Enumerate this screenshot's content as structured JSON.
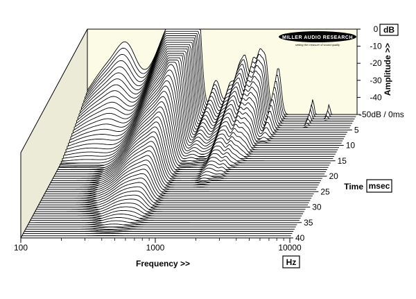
{
  "chart_data": {
    "type": "waterfall",
    "logo": {
      "brand": "MILLER AUDIO RESEARCH",
      "tagline": "setting the measure of sound quality"
    },
    "x_axis": {
      "label": "Frequency >>",
      "unit": "Hz",
      "scale": "log",
      "range": [
        100,
        10000
      ],
      "tick_labels": [
        "100",
        "1000",
        "10000"
      ]
    },
    "z_axis": {
      "label": "Amplitude >>",
      "unit": "dB",
      "range": [
        -50,
        0
      ],
      "tick_labels": [
        "0",
        "-10",
        "-20",
        "-30",
        "-40",
        "-50dB / 0ms"
      ]
    },
    "time_axis": {
      "label": "Time",
      "unit": "msec",
      "range": [
        0,
        40
      ],
      "tick_labels": [
        "5",
        "10",
        "15",
        "20",
        "25",
        "30",
        "35",
        "40"
      ]
    },
    "peaks": [
      {
        "f": 155,
        "a": 0.6,
        "w": 0.22,
        "d": 0.45
      },
      {
        "f": 200,
        "a": 0.35,
        "w": 0.1,
        "d": 0.35
      },
      {
        "f": 330,
        "a": 0.45,
        "w": 0.12,
        "d": 0.85
      },
      {
        "f": 420,
        "a": 0.7,
        "w": 0.1,
        "d": 1.0
      },
      {
        "f": 520,
        "a": 0.8,
        "w": 0.08,
        "d": 0.95
      },
      {
        "f": 600,
        "a": 0.95,
        "w": 0.06,
        "d": 0.9
      },
      {
        "f": 660,
        "a": 0.75,
        "w": 0.04,
        "d": 0.5
      },
      {
        "f": 900,
        "a": 0.4,
        "w": 0.05,
        "d": 0.45
      },
      {
        "f": 1150,
        "a": 0.35,
        "w": 0.04,
        "d": 0.4
      },
      {
        "f": 1350,
        "a": 0.55,
        "w": 0.04,
        "d": 0.6
      },
      {
        "f": 1500,
        "a": 0.5,
        "w": 0.03,
        "d": 0.55
      },
      {
        "f": 1700,
        "a": 0.6,
        "w": 0.03,
        "d": 0.55
      },
      {
        "f": 1900,
        "a": 0.65,
        "w": 0.03,
        "d": 0.45
      },
      {
        "f": 2100,
        "a": 0.6,
        "w": 0.03,
        "d": 0.4
      },
      {
        "f": 2600,
        "a": 0.55,
        "w": 0.03,
        "d": 0.25
      },
      {
        "f": 4700,
        "a": 0.18,
        "w": 0.012,
        "d": 0.12
      },
      {
        "f": 6200,
        "a": 0.12,
        "w": 0.01,
        "d": 0.06
      }
    ],
    "colors": {
      "back_wall": "#fcfbe6",
      "side_wall": "#ecebd7",
      "floor": "#f2f2f2",
      "trace_fill": "#ffffff",
      "trace_line": "#000000"
    }
  }
}
